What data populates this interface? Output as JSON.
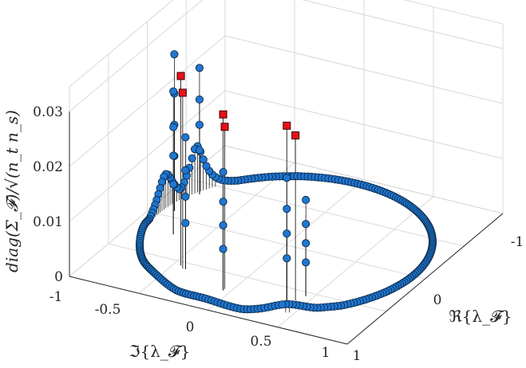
{
  "chart_data": {
    "type": "scatter",
    "subtype": "3d-stem",
    "title": "",
    "xlabel": "ℜ{λ_𝓕}",
    "ylabel": "ℑ{λ_𝓕}",
    "zlabel": "diag(Σ_𝓕)/√(n_t n_s)",
    "xlim": [
      -1,
      1
    ],
    "ylim": [
      -1,
      1
    ],
    "zlim": [
      0,
      0.03
    ],
    "x_ticks": [
      "-1",
      "0",
      "1"
    ],
    "y_ticks": [
      "-1",
      "-0.5",
      "0",
      "0.5",
      "1"
    ],
    "z_ticks": [
      "0",
      "0.01",
      "0.02",
      "0.03"
    ],
    "grid": true,
    "colors": {
      "circle_marker": "#1f77d1",
      "square_marker": "#e8111a",
      "stem": "#000000"
    },
    "series": [
      {
        "marker": "circle",
        "description_values": "unit circle eigenvalues; peaks near spectral lines",
        "points_peak": [
          {
            "re": 0.38,
            "im": -0.67,
            "z": 0.0225
          },
          {
            "re": 0.45,
            "im": -0.55,
            "z": 0.0175
          },
          {
            "re": -0.05,
            "im": -0.72,
            "z": 0.0215
          },
          {
            "re": -0.4,
            "im": -0.58,
            "z": 0.024
          },
          {
            "re": -0.7,
            "im": -0.2,
            "z": 0.026
          },
          {
            "re": -0.85,
            "im": 0.08,
            "z": 0.0285
          },
          {
            "re": -0.82,
            "im": 0.35,
            "z": 0.023
          }
        ]
      },
      {
        "marker": "square",
        "points": [
          {
            "re": 0.38,
            "im": -0.67,
            "z": 0.032
          },
          {
            "re": 0.42,
            "im": -0.63,
            "z": 0.03
          },
          {
            "re": -0.05,
            "im": -0.72,
            "z": 0.032
          },
          {
            "re": -0.05,
            "im": -0.7,
            "z": 0.0295
          },
          {
            "re": -0.45,
            "im": -0.55,
            "z": 0.0345
          },
          {
            "re": -0.42,
            "im": -0.58,
            "z": 0.032
          }
        ]
      }
    ]
  }
}
